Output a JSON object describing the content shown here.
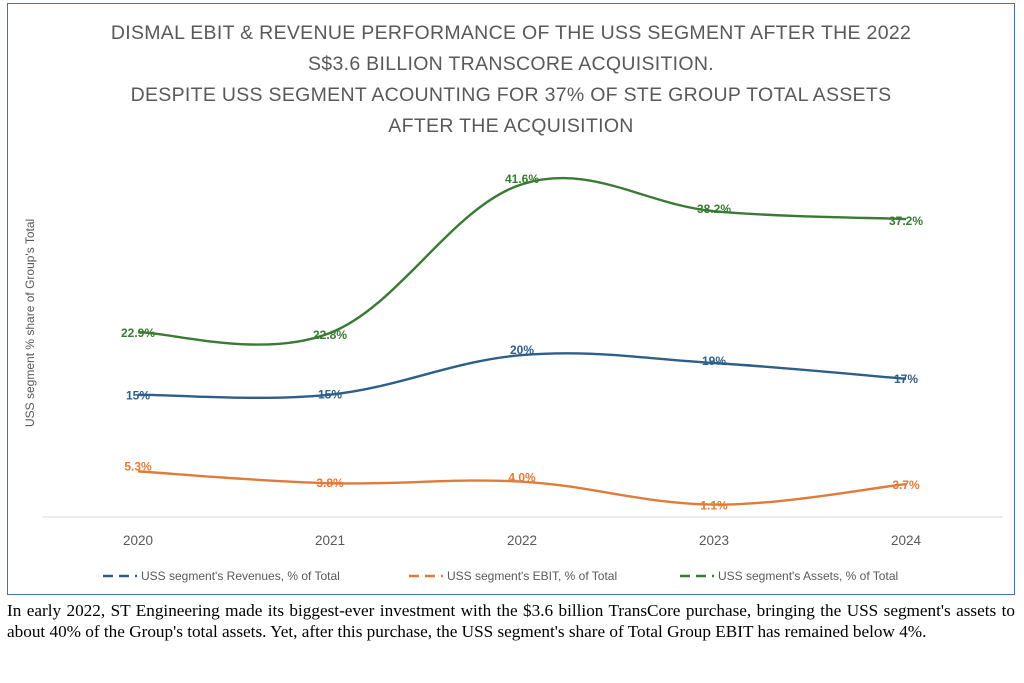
{
  "title_lines": [
    "DISMAL EBIT & REVENUE PERFORMANCE OF THE USS SEGMENT AFTER THE 2022",
    "S$3.6 BILLION TRANSCORE ACQUISITION.",
    "DESPITE USS SEGMENT ACOUNTING FOR 37% OF STE GROUP TOTAL ASSETS",
    "AFTER THE ACQUISITION"
  ],
  "caption": "In early 2022, ST Engineering made its biggest-ever investment with the $3.6 billion TransCore purchase, bringing the USS segment's assets to about 40% of the Group's total assets. Yet, after this purchase, the USS segment's share of Total Group EBIT has remained below 4%.",
  "chart_data": {
    "type": "line",
    "title": "DISMAL EBIT & REVENUE PERFORMANCE OF THE USS SEGMENT AFTER THE 2022 S$3.6 BILLION TRANSCORE ACQUISITION. DESPITE USS SEGMENT ACOUNTING FOR 37% OF STE GROUP TOTAL ASSETS AFTER THE ACQUISITION",
    "ylabel": "USS segment % share of Group's Total",
    "xlabel": "",
    "categories": [
      "2020",
      "2021",
      "2022",
      "2023",
      "2024"
    ],
    "ylim": [
      0,
      45
    ],
    "grid": false,
    "legend_position": "bottom",
    "series": [
      {
        "name": "USS segment's Revenues, % of Total",
        "color": "#2e5f8a",
        "values": [
          15,
          15,
          20,
          19,
          17
        ],
        "labels": [
          "15%",
          "15%",
          "20%",
          "19%",
          "17%"
        ]
      },
      {
        "name": "USS segment's EBIT, % of Total",
        "color": "#e07b39",
        "values": [
          5.3,
          3.8,
          4.0,
          1.1,
          3.7
        ],
        "labels": [
          "5.3%",
          "3.8%",
          "4.0%",
          "1.1%",
          "3.7%"
        ]
      },
      {
        "name": "USS segment's Assets, % of Total",
        "color": "#3a7a35",
        "values": [
          22.9,
          22.8,
          41.6,
          38.2,
          37.2
        ],
        "labels": [
          "22.9%",
          "22.8%",
          "41.6%",
          "38.2%",
          "37.2%"
        ]
      }
    ]
  }
}
